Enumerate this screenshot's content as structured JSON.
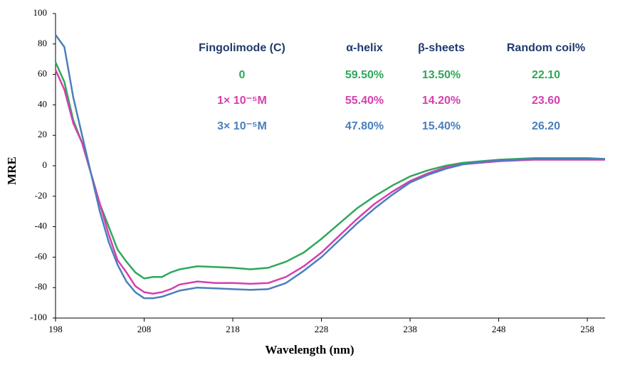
{
  "chart_data": {
    "type": "line",
    "x_label": "Wavelength (nm)",
    "y_label": "MRE",
    "xlim": [
      198,
      260
    ],
    "ylim": [
      -100,
      100
    ],
    "xticks": [
      198,
      208,
      218,
      228,
      238,
      248,
      258
    ],
    "yticks": [
      -100,
      -80,
      -60,
      -40,
      -20,
      0,
      20,
      40,
      60,
      80,
      100
    ],
    "x": [
      198,
      199,
      200,
      201,
      202,
      203,
      204,
      205,
      206,
      207,
      208,
      209,
      210,
      211,
      212,
      214,
      216,
      218,
      220,
      222,
      224,
      226,
      228,
      230,
      232,
      234,
      236,
      238,
      240,
      242,
      244,
      246,
      248,
      250,
      252,
      254,
      256,
      258,
      260
    ],
    "series": [
      {
        "name": "0",
        "color": "#2ea85a",
        "values": [
          68,
          55,
          30,
          15,
          -5,
          -25,
          -40,
          -55,
          -63,
          -70,
          -74,
          -73,
          -73,
          -70,
          -68,
          -66,
          -66.5,
          -67,
          -68,
          -67,
          -63,
          -57,
          -48,
          -38,
          -28,
          -20,
          -13,
          -7,
          -3,
          0,
          2,
          3,
          4,
          4.5,
          5,
          5,
          5,
          5,
          4.5
        ]
      },
      {
        "name": "1× 10⁻⁵M",
        "color": "#d63fae",
        "values": [
          63,
          50,
          28,
          15,
          -5,
          -25,
          -45,
          -62,
          -70,
          -79,
          -83,
          -84,
          -83,
          -81,
          -78,
          -76,
          -77,
          -77,
          -77.5,
          -77,
          -73,
          -66,
          -57,
          -46,
          -35,
          -25,
          -17,
          -10,
          -5,
          -1,
          1,
          2,
          3,
          3.5,
          4,
          4,
          4,
          4,
          4
        ]
      },
      {
        "name": "3× 10⁻⁵M",
        "color": "#4a7fbd",
        "values": [
          86,
          78,
          45,
          20,
          -5,
          -30,
          -50,
          -65,
          -76,
          -83,
          -87,
          -87,
          -86,
          -84,
          -82,
          -80,
          -80.5,
          -81,
          -81.5,
          -81,
          -77,
          -69,
          -60,
          -49,
          -38,
          -28,
          -19,
          -11,
          -6,
          -2,
          1,
          2.5,
          3.5,
          4,
          4.5,
          4.5,
          4.5,
          4.5,
          4.5
        ]
      }
    ],
    "table": {
      "header_color": "#1f3a6e",
      "header": [
        "Fingolimode (C)",
        "α-helix",
        "β-sheets",
        "Random coil%"
      ],
      "rows": [
        [
          "0",
          "59.50%",
          "13.50%",
          "22.10"
        ],
        [
          "1× 10⁻⁵M",
          "55.40%",
          "14.20%",
          "23.60"
        ],
        [
          "3× 10⁻⁵M",
          "47.80%",
          "15.40%",
          "26.20"
        ]
      ]
    }
  }
}
